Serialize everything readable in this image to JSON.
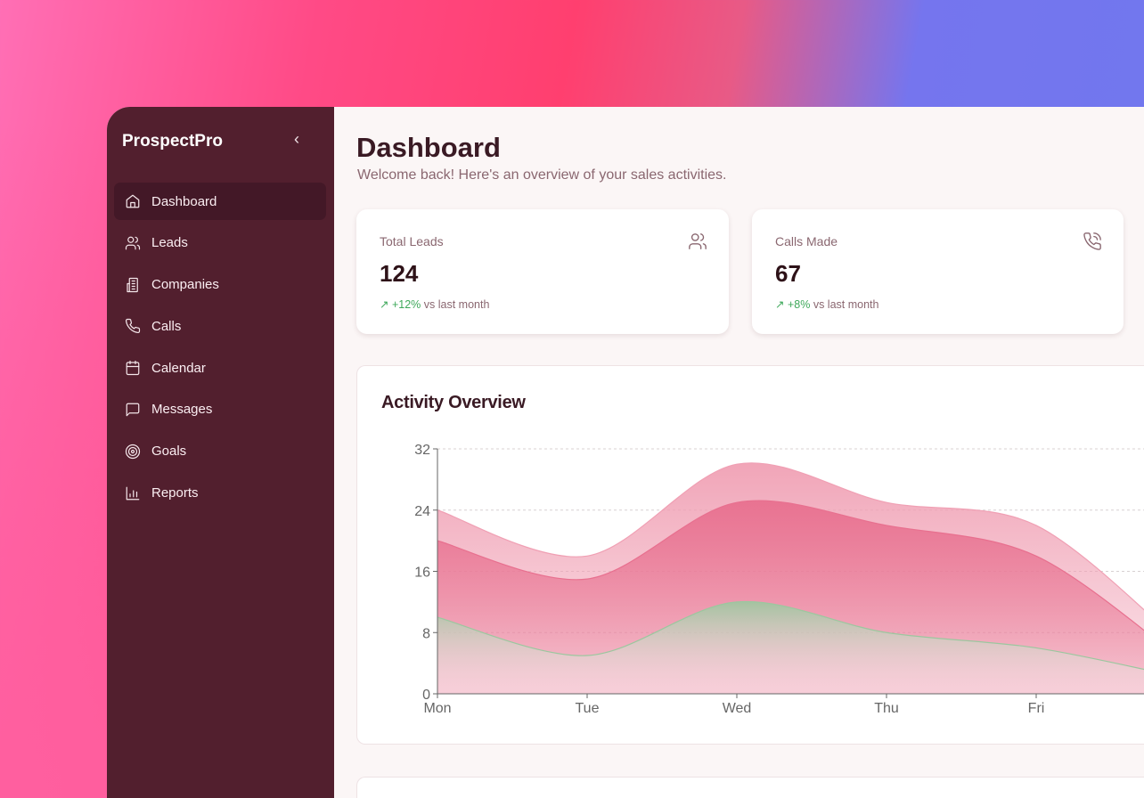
{
  "sidebar": {
    "brand": "ProspectPro",
    "collapse_icon": "chevron-left-icon",
    "items": [
      {
        "label": "Dashboard",
        "icon": "home-icon",
        "active": true
      },
      {
        "label": "Leads",
        "icon": "users-icon"
      },
      {
        "label": "Companies",
        "icon": "building-icon"
      },
      {
        "label": "Calls",
        "icon": "phone-icon"
      },
      {
        "label": "Calendar",
        "icon": "calendar-icon"
      },
      {
        "label": "Messages",
        "icon": "message-icon"
      },
      {
        "label": "Goals",
        "icon": "target-icon"
      },
      {
        "label": "Reports",
        "icon": "bar-chart-icon"
      }
    ]
  },
  "header": {
    "title": "Dashboard",
    "subtitle": "Welcome back! Here's an overview of your sales activities."
  },
  "stats": [
    {
      "label": "Total Leads",
      "value": "124",
      "change": "+12%",
      "change_suffix": "vs last month",
      "icon": "users-icon"
    },
    {
      "label": "Calls Made",
      "value": "67",
      "change": "+8%",
      "change_suffix": "vs last month",
      "icon": "phone-call-icon"
    }
  ],
  "colors": {
    "sidebar": "#521f2e",
    "positive": "#3ea85a",
    "series_top": "#f0a0b4",
    "series_mid": "#e8708f",
    "series_green": "#9cc79f"
  },
  "chart_data": {
    "type": "area",
    "title": "Activity Overview",
    "categories": [
      "Mon",
      "Tue",
      "Wed",
      "Thu",
      "Fri",
      ""
    ],
    "ylim": [
      0,
      32
    ],
    "yticks": [
      0,
      8,
      16,
      24,
      32
    ],
    "grid": true,
    "series": [
      {
        "values": [
          24,
          18,
          30,
          25,
          22,
          6
        ],
        "color": "#f0a0b4"
      },
      {
        "values": [
          20,
          15,
          25,
          22,
          18,
          4
        ],
        "color": "#e8708f"
      },
      {
        "values": [
          10,
          5,
          12,
          8,
          6,
          2
        ],
        "color": "#9cc79f"
      }
    ]
  }
}
